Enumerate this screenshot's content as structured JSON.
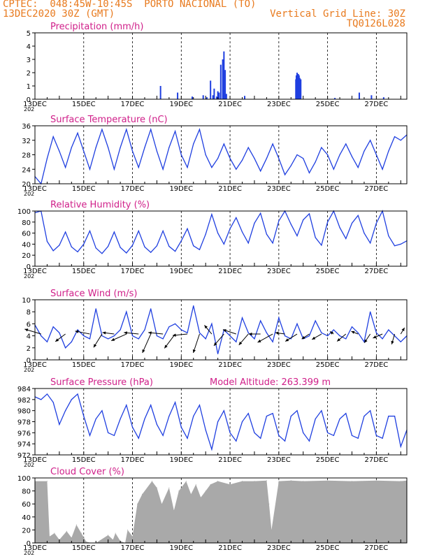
{
  "header": {
    "left_line1": "CPTEC:  048:45W-10:45S  PORTO NACIONAL (TO)",
    "left_line2": "13DEC2020 30Z (GMT)",
    "right_line1": "Vertical Grid Line: 30Z",
    "right_line2": "TQ0126L028"
  },
  "colors": {
    "header": "#e87a1e",
    "title": "#d0208a",
    "series": "#1f3fe0",
    "cloud": "#a9a9a9",
    "arrow": "#000000"
  },
  "x_ticks": [
    "13DEC",
    "15DEC",
    "17DEC",
    "19DEC",
    "21DEC",
    "23DEC",
    "25DEC",
    "27DEC"
  ],
  "year_stub": "202",
  "chart_data": [
    {
      "type": "bar",
      "title": "Precipitation (mm/h)",
      "ylim": [
        0,
        5
      ],
      "yticks": [
        0,
        1,
        2,
        3,
        4,
        5
      ],
      "x_unit": "days since 13DEC",
      "x": [
        5.15,
        5.85,
        6.45,
        6.9,
        7.05,
        7.2,
        7.3,
        7.35,
        7.45,
        7.5,
        7.55,
        7.62,
        7.7,
        7.75,
        7.8,
        7.85,
        8.6,
        10.7,
        10.72,
        10.75,
        10.78,
        10.8,
        10.83,
        10.86,
        10.9,
        12.3,
        13.3,
        13.8,
        14.3
      ],
      "values": [
        1.0,
        0.5,
        0.2,
        0.3,
        0.15,
        1.4,
        0.3,
        0.8,
        0.2,
        0.6,
        0.5,
        2.6,
        3.0,
        3.6,
        2.2,
        0.4,
        0.25,
        1.5,
        1.8,
        2.0,
        1.7,
        1.9,
        1.8,
        1.6,
        1.5,
        0.1,
        0.5,
        0.3,
        0.15
      ]
    },
    {
      "type": "line",
      "title": "Surface Temperature (nC)",
      "ylim": [
        20,
        36
      ],
      "yticks": [
        20,
        24,
        28,
        32,
        36
      ],
      "x_unit": "days since 13DEC",
      "x": [
        0,
        0.25,
        0.5,
        0.75,
        1.0,
        1.25,
        1.5,
        1.75,
        2.0,
        2.25,
        2.5,
        2.75,
        3.0,
        3.25,
        3.5,
        3.75,
        4.0,
        4.25,
        4.5,
        4.75,
        5.0,
        5.25,
        5.5,
        5.75,
        6.0,
        6.25,
        6.5,
        6.75,
        7.0,
        7.25,
        7.5,
        7.75,
        8.0,
        8.25,
        8.5,
        8.75,
        9.0,
        9.25,
        9.5,
        9.75,
        10.0,
        10.25,
        10.5,
        10.75,
        11.0,
        11.25,
        11.5,
        11.75,
        12.0,
        12.25,
        12.5,
        12.75,
        13.0,
        13.25,
        13.5,
        13.75,
        14.0,
        14.25,
        14.5,
        14.75,
        15.0,
        15.25
      ],
      "values": [
        22.0,
        20.0,
        27.0,
        33.0,
        29.0,
        24.5,
        30.0,
        34.0,
        29.0,
        24.0,
        30.0,
        35.0,
        30.0,
        24.0,
        30.0,
        35.0,
        29.0,
        24.5,
        30.0,
        35.0,
        29.0,
        24.0,
        30.0,
        34.5,
        28.0,
        24.5,
        31.0,
        35.0,
        28.0,
        24.5,
        27.0,
        31.0,
        27.0,
        24.0,
        26.5,
        30.0,
        27.0,
        23.5,
        27.0,
        31.0,
        27.0,
        22.5,
        25.0,
        28.0,
        27.0,
        23.0,
        26.0,
        30.0,
        28.0,
        24.0,
        28.0,
        31.0,
        27.5,
        24.5,
        29.0,
        32.0,
        28.0,
        24.0,
        29.0,
        33.0,
        32.0,
        33.5
      ]
    },
    {
      "type": "line",
      "title": "Relative Humidity (%)",
      "ylim": [
        0,
        100
      ],
      "yticks": [
        0,
        20,
        40,
        60,
        80,
        100
      ],
      "x_unit": "days since 13DEC",
      "x": [
        0,
        0.25,
        0.5,
        0.75,
        1.0,
        1.25,
        1.5,
        1.75,
        2.0,
        2.25,
        2.5,
        2.75,
        3.0,
        3.25,
        3.5,
        3.75,
        4.0,
        4.25,
        4.5,
        4.75,
        5.0,
        5.25,
        5.5,
        5.75,
        6.0,
        6.25,
        6.5,
        6.75,
        7.0,
        7.25,
        7.5,
        7.75,
        8.0,
        8.25,
        8.5,
        8.75,
        9.0,
        9.25,
        9.5,
        9.75,
        10.0,
        10.25,
        10.5,
        10.75,
        11.0,
        11.25,
        11.5,
        11.75,
        12.0,
        12.25,
        12.5,
        12.75,
        13.0,
        13.25,
        13.5,
        13.75,
        14.0,
        14.25,
        14.5,
        14.75,
        15.0,
        15.25
      ],
      "values": [
        97,
        100,
        45,
        28,
        38,
        62,
        35,
        26,
        40,
        64,
        33,
        23,
        36,
        62,
        34,
        24,
        38,
        64,
        35,
        25,
        37,
        64,
        36,
        27,
        46,
        68,
        37,
        30,
        58,
        94,
        60,
        40,
        68,
        88,
        62,
        42,
        78,
        96,
        58,
        42,
        82,
        100,
        76,
        55,
        84,
        95,
        52,
        38,
        80,
        100,
        70,
        50,
        78,
        92,
        60,
        42,
        78,
        100,
        55,
        37,
        40,
        46
      ]
    },
    {
      "type": "line",
      "title": "Surface Wind (m/s)",
      "ylim": [
        0,
        10
      ],
      "yticks": [
        0,
        2,
        4,
        6,
        8,
        10
      ],
      "x_unit": "days since 13DEC",
      "x": [
        0,
        0.25,
        0.5,
        0.75,
        1.0,
        1.25,
        1.5,
        1.75,
        2.0,
        2.25,
        2.5,
        2.75,
        3.0,
        3.25,
        3.5,
        3.75,
        4.0,
        4.25,
        4.5,
        4.75,
        5.0,
        5.25,
        5.5,
        5.75,
        6.0,
        6.25,
        6.5,
        6.75,
        7.0,
        7.25,
        7.5,
        7.75,
        8.0,
        8.25,
        8.5,
        8.75,
        9.0,
        9.25,
        9.5,
        9.75,
        10.0,
        10.25,
        10.5,
        10.75,
        11.0,
        11.25,
        11.5,
        11.75,
        12.0,
        12.25,
        12.5,
        12.75,
        13.0,
        13.25,
        13.5,
        13.75,
        14.0,
        14.25,
        14.5,
        14.75,
        15.0,
        15.25
      ],
      "values": [
        5.8,
        4.0,
        3.0,
        5.5,
        4.5,
        2.0,
        3.0,
        5.0,
        4.0,
        3.5,
        8.5,
        4.0,
        3.5,
        4.0,
        5.0,
        8.0,
        4.0,
        3.5,
        5.0,
        8.5,
        4.0,
        3.5,
        5.5,
        6.0,
        5.0,
        4.5,
        9.0,
        4.5,
        3.5,
        6.0,
        1.0,
        5.0,
        4.0,
        3.0,
        7.0,
        4.5,
        3.5,
        6.5,
        4.5,
        3.0,
        7.0,
        4.0,
        3.5,
        6.0,
        3.5,
        4.0,
        6.5,
        4.5,
        4.0,
        5.0,
        4.0,
        3.5,
        5.5,
        4.5,
        3.0,
        8.0,
        4.5,
        3.5,
        5.0,
        4.0,
        3.0,
        4.0
      ]
    },
    {
      "type": "line",
      "title": "Surface Pressure (hPa)",
      "annotation": "Model Altitude: 263.399 m",
      "ylim": [
        972,
        984
      ],
      "yticks": [
        972,
        974,
        976,
        978,
        980,
        982,
        984
      ],
      "x_unit": "days since 13DEC",
      "x": [
        0,
        0.25,
        0.5,
        0.75,
        1.0,
        1.25,
        1.5,
        1.75,
        2.0,
        2.25,
        2.5,
        2.75,
        3.0,
        3.25,
        3.5,
        3.75,
        4.0,
        4.25,
        4.5,
        4.75,
        5.0,
        5.25,
        5.5,
        5.75,
        6.0,
        6.25,
        6.5,
        6.75,
        7.0,
        7.25,
        7.5,
        7.75,
        8.0,
        8.25,
        8.5,
        8.75,
        9.0,
        9.25,
        9.5,
        9.75,
        10.0,
        10.25,
        10.5,
        10.75,
        11.0,
        11.25,
        11.5,
        11.75,
        12.0,
        12.25,
        12.5,
        12.75,
        13.0,
        13.25,
        13.5,
        13.75,
        14.0,
        14.25,
        14.5,
        14.75,
        15.0,
        15.25
      ],
      "values": [
        982.5,
        982.0,
        983.0,
        981.5,
        977.5,
        980.0,
        982.0,
        983.0,
        979.0,
        975.5,
        978.5,
        980.0,
        976.0,
        975.5,
        978.5,
        981.0,
        977.0,
        975.0,
        978.5,
        981.0,
        977.5,
        975.5,
        979.0,
        981.5,
        977.0,
        975.0,
        979.0,
        981.0,
        976.5,
        973.0,
        978.0,
        980.0,
        976.0,
        974.5,
        978.0,
        979.5,
        976.0,
        975.0,
        979.0,
        979.5,
        975.5,
        974.5,
        979.0,
        980.0,
        976.0,
        974.5,
        978.5,
        980.0,
        976.0,
        975.5,
        978.5,
        979.5,
        975.5,
        975.0,
        979.0,
        980.0,
        975.5,
        975.0,
        979.0,
        979.0,
        973.5,
        976.5
      ]
    },
    {
      "type": "area",
      "title": "Cloud Cover (%)",
      "ylim": [
        0,
        100
      ],
      "yticks": [
        0,
        20,
        40,
        60,
        80,
        100
      ],
      "x_unit": "days since 13DEC",
      "x": [
        0,
        0.5,
        0.6,
        0.8,
        1.0,
        1.3,
        1.5,
        1.7,
        1.9,
        2.1,
        2.3,
        2.5,
        3.0,
        3.2,
        3.3,
        3.5,
        3.7,
        3.8,
        4.0,
        4.2,
        4.4,
        4.8,
        5.0,
        5.2,
        5.5,
        5.7,
        5.9,
        6.2,
        6.4,
        6.6,
        6.8,
        7.0,
        7.2,
        7.5,
        8.0,
        8.5,
        9.0,
        9.5,
        9.6,
        9.7,
        10.0,
        10.5,
        11.0,
        12.0,
        13.0,
        14.0,
        15.0,
        15.25
      ],
      "values": [
        95,
        95,
        10,
        15,
        5,
        18,
        8,
        28,
        15,
        2,
        0,
        0,
        12,
        5,
        15,
        3,
        0,
        20,
        10,
        60,
        75,
        95,
        85,
        60,
        85,
        50,
        80,
        95,
        75,
        90,
        70,
        80,
        90,
        95,
        90,
        95,
        95,
        96,
        60,
        20,
        95,
        96,
        95,
        96,
        95,
        96,
        95,
        96
      ]
    },
    {
      "type": "scatter",
      "title": "Surface Wind vectors",
      "x_unit": "days since 13DEC",
      "x": [
        0.25,
        1.25,
        2.25,
        2.75,
        3.25,
        3.75,
        4.25,
        4.75,
        5.25,
        5.75,
        6.25,
        6.75,
        7.25,
        7.75,
        8.25,
        8.75,
        9.25,
        9.75,
        10.25,
        10.75,
        11.25,
        11.75,
        12.25,
        12.75,
        13.25,
        13.75,
        14.25,
        14.75,
        15.0
      ],
      "u": [
        -1.0,
        -0.8,
        -1.0,
        -0.5,
        -0.8,
        -0.9,
        -1.0,
        -0.4,
        -1.0,
        -0.6,
        -1.0,
        -0.3,
        -0.5,
        -0.6,
        -0.9,
        -0.6,
        -0.8,
        -0.9,
        -0.7,
        -0.8,
        -0.6,
        -0.7,
        -0.3,
        -0.6,
        -0.5,
        -0.4,
        -0.7,
        -0.2,
        0.3
      ],
      "v": [
        0.3,
        -0.6,
        0.2,
        -0.8,
        0.1,
        -0.4,
        0.1,
        -0.9,
        0.1,
        -0.8,
        -0.1,
        -0.9,
        0.6,
        -0.7,
        0.3,
        -0.7,
        0.0,
        -0.5,
        0.1,
        -0.5,
        -0.4,
        -0.4,
        0.2,
        -0.5,
        0.2,
        -0.6,
        -0.3,
        -0.7,
        0.5
      ],
      "speed": [
        5.8,
        4.0,
        5.0,
        6.0,
        5.0,
        6.0,
        5.0,
        8.0,
        5.0,
        6.5,
        5.0,
        8.0,
        5.0,
        6.0,
        5.0,
        5.5,
        5.0,
        6.0,
        4.5,
        5.0,
        4.0,
        4.5,
        4.0,
        5.0,
        4.5,
        5.0,
        4.5,
        5.0,
        4.0
      ]
    }
  ]
}
